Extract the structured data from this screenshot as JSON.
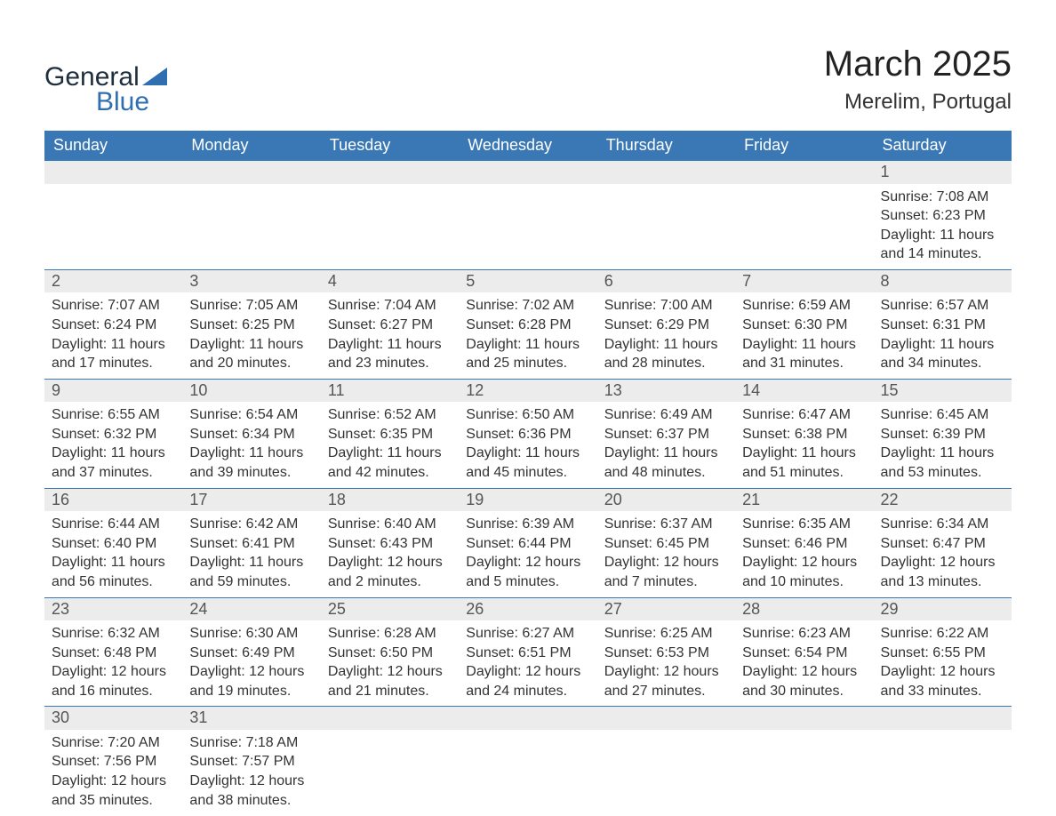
{
  "logo": {
    "word1": "General",
    "word2": "Blue"
  },
  "title": "March 2025",
  "location": "Merelim, Portugal",
  "colors": {
    "header_bg": "#3a78b5",
    "header_text": "#ffffff",
    "daynum_bg": "#ececec",
    "daynum_text": "#555555",
    "body_text": "#333333",
    "logo_dark": "#1f2e3d",
    "logo_blue": "#2f6fb0",
    "row_border": "#3a78b5",
    "background": "#ffffff"
  },
  "typography": {
    "title_fontsize": 40,
    "location_fontsize": 24,
    "header_fontsize": 18,
    "daynum_fontsize": 18,
    "detail_fontsize": 16,
    "logo_fontsize": 30
  },
  "labels": {
    "sunrise": "Sunrise:",
    "sunset": "Sunset:",
    "daylight": "Daylight:"
  },
  "weekdays": [
    "Sunday",
    "Monday",
    "Tuesday",
    "Wednesday",
    "Thursday",
    "Friday",
    "Saturday"
  ],
  "weeks": [
    [
      null,
      null,
      null,
      null,
      null,
      null,
      {
        "day": "1",
        "sunrise": "7:08 AM",
        "sunset": "6:23 PM",
        "daylight": "11 hours and 14 minutes."
      }
    ],
    [
      {
        "day": "2",
        "sunrise": "7:07 AM",
        "sunset": "6:24 PM",
        "daylight": "11 hours and 17 minutes."
      },
      {
        "day": "3",
        "sunrise": "7:05 AM",
        "sunset": "6:25 PM",
        "daylight": "11 hours and 20 minutes."
      },
      {
        "day": "4",
        "sunrise": "7:04 AM",
        "sunset": "6:27 PM",
        "daylight": "11 hours and 23 minutes."
      },
      {
        "day": "5",
        "sunrise": "7:02 AM",
        "sunset": "6:28 PM",
        "daylight": "11 hours and 25 minutes."
      },
      {
        "day": "6",
        "sunrise": "7:00 AM",
        "sunset": "6:29 PM",
        "daylight": "11 hours and 28 minutes."
      },
      {
        "day": "7",
        "sunrise": "6:59 AM",
        "sunset": "6:30 PM",
        "daylight": "11 hours and 31 minutes."
      },
      {
        "day": "8",
        "sunrise": "6:57 AM",
        "sunset": "6:31 PM",
        "daylight": "11 hours and 34 minutes."
      }
    ],
    [
      {
        "day": "9",
        "sunrise": "6:55 AM",
        "sunset": "6:32 PM",
        "daylight": "11 hours and 37 minutes."
      },
      {
        "day": "10",
        "sunrise": "6:54 AM",
        "sunset": "6:34 PM",
        "daylight": "11 hours and 39 minutes."
      },
      {
        "day": "11",
        "sunrise": "6:52 AM",
        "sunset": "6:35 PM",
        "daylight": "11 hours and 42 minutes."
      },
      {
        "day": "12",
        "sunrise": "6:50 AM",
        "sunset": "6:36 PM",
        "daylight": "11 hours and 45 minutes."
      },
      {
        "day": "13",
        "sunrise": "6:49 AM",
        "sunset": "6:37 PM",
        "daylight": "11 hours and 48 minutes."
      },
      {
        "day": "14",
        "sunrise": "6:47 AM",
        "sunset": "6:38 PM",
        "daylight": "11 hours and 51 minutes."
      },
      {
        "day": "15",
        "sunrise": "6:45 AM",
        "sunset": "6:39 PM",
        "daylight": "11 hours and 53 minutes."
      }
    ],
    [
      {
        "day": "16",
        "sunrise": "6:44 AM",
        "sunset": "6:40 PM",
        "daylight": "11 hours and 56 minutes."
      },
      {
        "day": "17",
        "sunrise": "6:42 AM",
        "sunset": "6:41 PM",
        "daylight": "11 hours and 59 minutes."
      },
      {
        "day": "18",
        "sunrise": "6:40 AM",
        "sunset": "6:43 PM",
        "daylight": "12 hours and 2 minutes."
      },
      {
        "day": "19",
        "sunrise": "6:39 AM",
        "sunset": "6:44 PM",
        "daylight": "12 hours and 5 minutes."
      },
      {
        "day": "20",
        "sunrise": "6:37 AM",
        "sunset": "6:45 PM",
        "daylight": "12 hours and 7 minutes."
      },
      {
        "day": "21",
        "sunrise": "6:35 AM",
        "sunset": "6:46 PM",
        "daylight": "12 hours and 10 minutes."
      },
      {
        "day": "22",
        "sunrise": "6:34 AM",
        "sunset": "6:47 PM",
        "daylight": "12 hours and 13 minutes."
      }
    ],
    [
      {
        "day": "23",
        "sunrise": "6:32 AM",
        "sunset": "6:48 PM",
        "daylight": "12 hours and 16 minutes."
      },
      {
        "day": "24",
        "sunrise": "6:30 AM",
        "sunset": "6:49 PM",
        "daylight": "12 hours and 19 minutes."
      },
      {
        "day": "25",
        "sunrise": "6:28 AM",
        "sunset": "6:50 PM",
        "daylight": "12 hours and 21 minutes."
      },
      {
        "day": "26",
        "sunrise": "6:27 AM",
        "sunset": "6:51 PM",
        "daylight": "12 hours and 24 minutes."
      },
      {
        "day": "27",
        "sunrise": "6:25 AM",
        "sunset": "6:53 PM",
        "daylight": "12 hours and 27 minutes."
      },
      {
        "day": "28",
        "sunrise": "6:23 AM",
        "sunset": "6:54 PM",
        "daylight": "12 hours and 30 minutes."
      },
      {
        "day": "29",
        "sunrise": "6:22 AM",
        "sunset": "6:55 PM",
        "daylight": "12 hours and 33 minutes."
      }
    ],
    [
      {
        "day": "30",
        "sunrise": "7:20 AM",
        "sunset": "7:56 PM",
        "daylight": "12 hours and 35 minutes."
      },
      {
        "day": "31",
        "sunrise": "7:18 AM",
        "sunset": "7:57 PM",
        "daylight": "12 hours and 38 minutes."
      },
      null,
      null,
      null,
      null,
      null
    ]
  ]
}
